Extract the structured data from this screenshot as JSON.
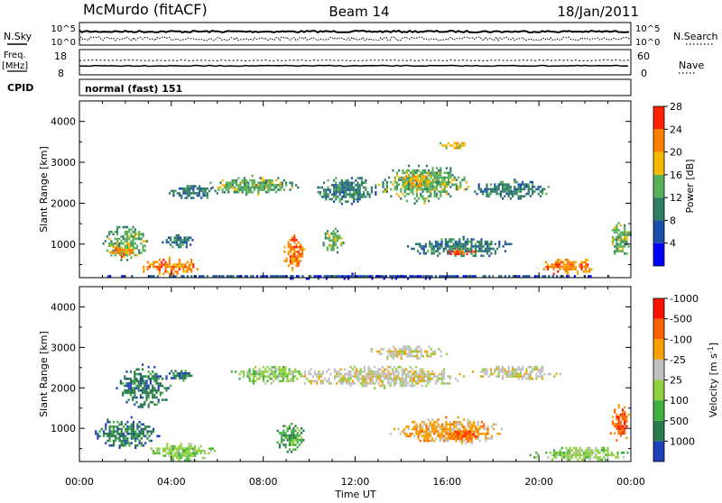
{
  "header": {
    "station": "McMurdo (fitACF)",
    "beam": "Beam 14",
    "date": "18/Jan/2011"
  },
  "top_panels": {
    "nsky_label": "N.Sky",
    "nsearch_label": "N.Search",
    "noise_ticks": [
      "10^5",
      "10^0"
    ],
    "freq_label_1": "Freq.",
    "freq_label_2": "[MHz]",
    "freq_ticks": [
      "18",
      "8"
    ],
    "nave_label": "Nave",
    "nave_ticks": [
      "60",
      "0"
    ],
    "cpid_label": "CPID",
    "cpid_value": "normal (fast) 151"
  },
  "chart_data": [
    {
      "type": "heatmap",
      "name": "Power",
      "ylabel": "Slant Range [km]",
      "ylim": [
        180,
        4500
      ],
      "y_ticks": [
        1000,
        2000,
        3000,
        4000
      ],
      "x_ticks": [
        "00:00",
        "04:00",
        "08:00",
        "12:00",
        "16:00",
        "20:00",
        "00:00"
      ],
      "xlim_hours": [
        0,
        24
      ],
      "colorbar_label": "Power [dB]",
      "colorbar_levels": [
        4,
        8,
        12,
        16,
        20,
        24,
        28
      ],
      "colorbar_colors": [
        "#0000ff",
        "#1c4fa8",
        "#2e7d64",
        "#58b058",
        "#f5b800",
        "#ff7f00",
        "#ff2000"
      ],
      "regions": [
        {
          "t": [
            1.0,
            3.0
          ],
          "r": [
            600,
            1500
          ],
          "level": 16
        },
        {
          "t": [
            1.2,
            2.4
          ],
          "r": [
            700,
            1000
          ],
          "level": 24
        },
        {
          "t": [
            2.5,
            5.5
          ],
          "r": [
            250,
            700
          ],
          "level": 24
        },
        {
          "t": [
            3.5,
            5.0
          ],
          "r": [
            900,
            1300
          ],
          "level": 12
        },
        {
          "t": [
            3.8,
            6.0
          ],
          "r": [
            2100,
            2500
          ],
          "level": 12
        },
        {
          "t": [
            5.5,
            9.5
          ],
          "r": [
            2200,
            2700
          ],
          "level": 16
        },
        {
          "t": [
            8.8,
            9.8
          ],
          "r": [
            350,
            1300
          ],
          "level": 24
        },
        {
          "t": [
            10.5,
            11.5
          ],
          "r": [
            800,
            1400
          ],
          "level": 16
        },
        {
          "t": [
            10.0,
            13.0
          ],
          "r": [
            2000,
            2700
          ],
          "level": 12
        },
        {
          "t": [
            13.0,
            17.0
          ],
          "r": [
            2000,
            3000
          ],
          "level": 16
        },
        {
          "t": [
            14.0,
            15.5
          ],
          "r": [
            2400,
            2800
          ],
          "level": 20
        },
        {
          "t": [
            15.5,
            17.0
          ],
          "r": [
            3350,
            3550
          ],
          "level": 20
        },
        {
          "t": [
            14.0,
            19.0
          ],
          "r": [
            700,
            1200
          ],
          "level": 12
        },
        {
          "t": [
            15.7,
            17.2
          ],
          "r": [
            750,
            900
          ],
          "level": 28
        },
        {
          "t": [
            17.0,
            20.5
          ],
          "r": [
            2100,
            2600
          ],
          "level": 12
        },
        {
          "t": [
            20.0,
            22.5
          ],
          "r": [
            250,
            700
          ],
          "level": 24
        },
        {
          "t": [
            23.0,
            24.0
          ],
          "r": [
            700,
            1600
          ],
          "level": 16
        },
        {
          "t": [
            0.0,
            24.0
          ],
          "r": [
            180,
            300
          ],
          "level": 8
        }
      ]
    },
    {
      "type": "heatmap",
      "name": "Velocity",
      "ylabel": "Slant Range [km]",
      "ylim": [
        180,
        4500
      ],
      "y_ticks": [
        1000,
        2000,
        3000,
        4000
      ],
      "x_ticks": [
        "00:00",
        "04:00",
        "08:00",
        "12:00",
        "16:00",
        "20:00",
        "00:00"
      ],
      "xlabel": "Time UT",
      "colorbar_label": "Velocity [m s",
      "colorbar_exp": "-1",
      "colorbar_close": "]",
      "colorbar_levels": [
        1000,
        500,
        100,
        25,
        -25,
        -100,
        -500,
        -1000
      ],
      "colorbar_colors": [
        "#1e40b8",
        "#2a7a4e",
        "#40b040",
        "#90d040",
        "#c0c0c0",
        "#f5a000",
        "#ff6000",
        "#ff1000"
      ],
      "regions": [
        {
          "t": [
            0.5,
            3.5
          ],
          "r": [
            500,
            1300
          ],
          "level": 500
        },
        {
          "t": [
            1.5,
            4.0
          ],
          "r": [
            1500,
            2600
          ],
          "level": 500
        },
        {
          "t": [
            3.0,
            6.0
          ],
          "r": [
            200,
            700
          ],
          "level": 25
        },
        {
          "t": [
            3.8,
            5.0
          ],
          "r": [
            2200,
            2500
          ],
          "level": 500
        },
        {
          "t": [
            6.5,
            10.0
          ],
          "r": [
            2100,
            2600
          ],
          "level": 25
        },
        {
          "t": [
            8.5,
            9.8
          ],
          "r": [
            400,
            1200
          ],
          "level": 100
        },
        {
          "t": [
            9.0,
            17.0
          ],
          "r": [
            2000,
            2600
          ],
          "level": -25
        },
        {
          "t": [
            12.5,
            16.0
          ],
          "r": [
            2700,
            3100
          ],
          "level": -25
        },
        {
          "t": [
            13.5,
            18.5
          ],
          "r": [
            600,
            1300
          ],
          "level": -100
        },
        {
          "t": [
            16.0,
            17.5
          ],
          "r": [
            700,
            1000
          ],
          "level": -500
        },
        {
          "t": [
            17.0,
            21.0
          ],
          "r": [
            2200,
            2600
          ],
          "level": -25
        },
        {
          "t": [
            19.5,
            24.0
          ],
          "r": [
            200,
            600
          ],
          "level": 25
        },
        {
          "t": [
            23.0,
            24.0
          ],
          "r": [
            700,
            1600
          ],
          "level": -500
        }
      ]
    }
  ]
}
